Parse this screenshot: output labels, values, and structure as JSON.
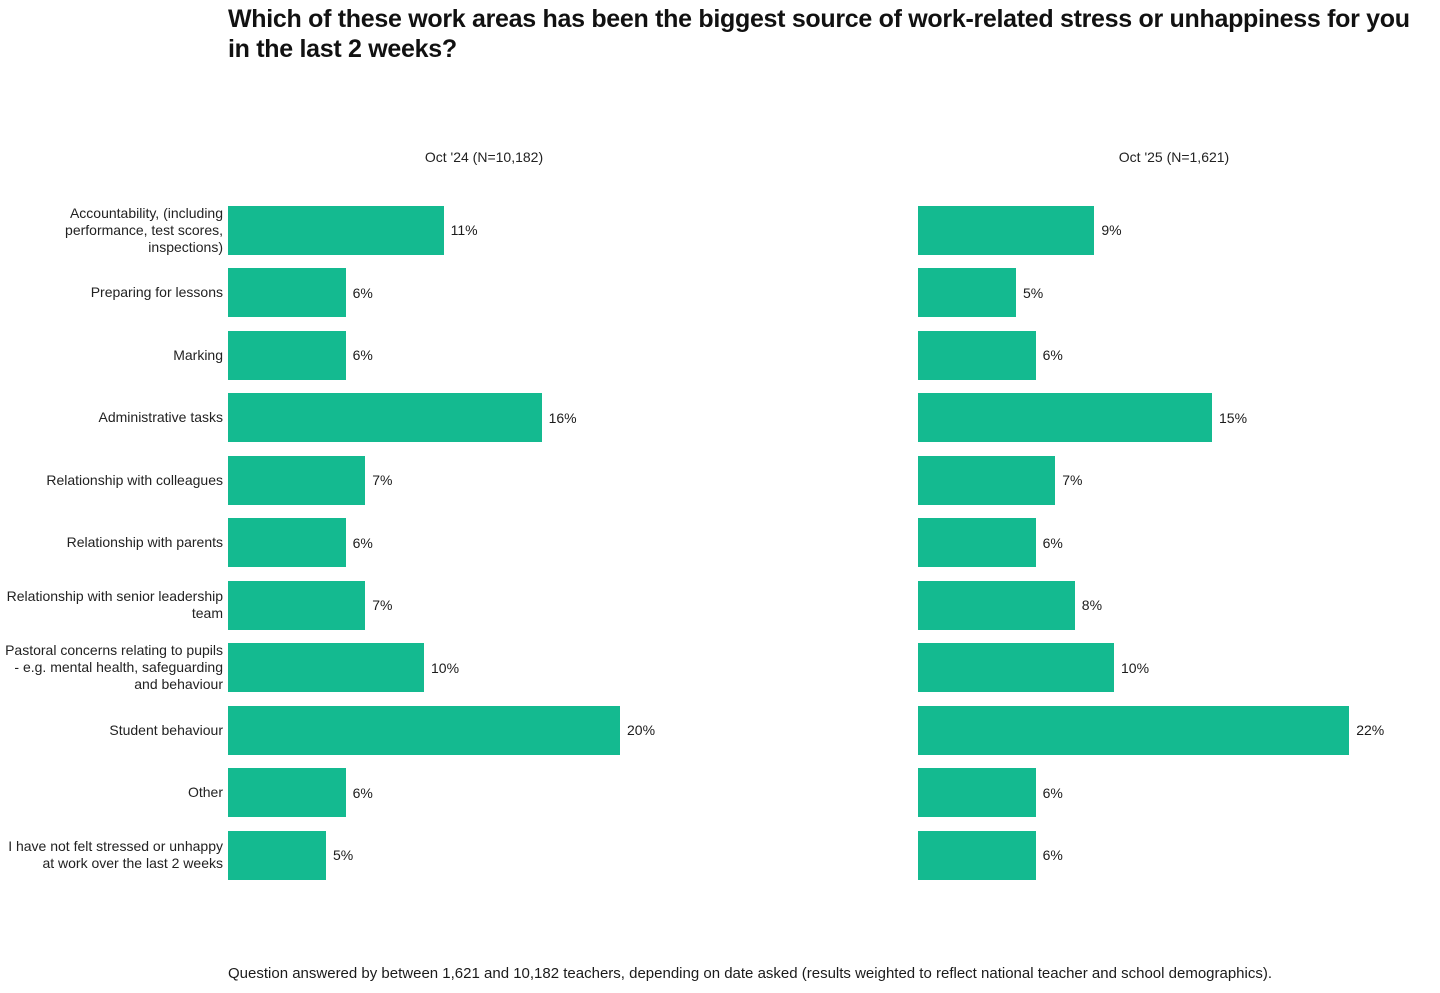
{
  "page": {
    "title": "Which of these work areas has been the biggest source of work-related stress or unhappiness for you in the last 2 weeks?",
    "footnote": "Question answered by between 1,621 and 10,182 teachers, depending on date asked (results weighted to reflect national teacher and school demographics)."
  },
  "colors": {
    "bar": "#14BA90",
    "title_text": "#111111",
    "label_text": "#222222"
  },
  "chart_data": {
    "type": "bar",
    "orientation": "horizontal",
    "unit": "%",
    "title": "Which of these work areas has been the biggest source of work-related stress or unhappiness for you in the last 2 weeks?",
    "categories": [
      "Accountability, (including performance, test scores, inspections)",
      "Preparing for lessons",
      "Marking",
      "Administrative tasks",
      "Relationship with colleagues",
      "Relationship with parents",
      "Relationship with senior leadership team",
      "Pastoral concerns relating to pupils - e.g. mental health, safeguarding and behaviour",
      "Student behaviour",
      "Other",
      "I have not felt stressed or unhappy at work over the last 2 weeks"
    ],
    "series": [
      {
        "name": "Oct '24 (N=10,182)",
        "values": [
          11,
          6,
          6,
          16,
          7,
          6,
          7,
          10,
          20,
          6,
          5
        ]
      },
      {
        "name": "Oct '25 (N=1,621)",
        "values": [
          9,
          5,
          6,
          15,
          7,
          6,
          8,
          10,
          22,
          6,
          6
        ]
      }
    ],
    "value_labels": [
      [
        "11%",
        "6%",
        "6%",
        "16%",
        "7%",
        "6%",
        "7%",
        "10%",
        "20%",
        "6%",
        "5%"
      ],
      [
        "9%",
        "5%",
        "6%",
        "15%",
        "7%",
        "6%",
        "8%",
        "10%",
        "22%",
        "6%",
        "6%"
      ]
    ],
    "xlim": [
      0,
      26
    ],
    "grid": false,
    "axis_visible": false,
    "legend_position": "panel-headers"
  }
}
